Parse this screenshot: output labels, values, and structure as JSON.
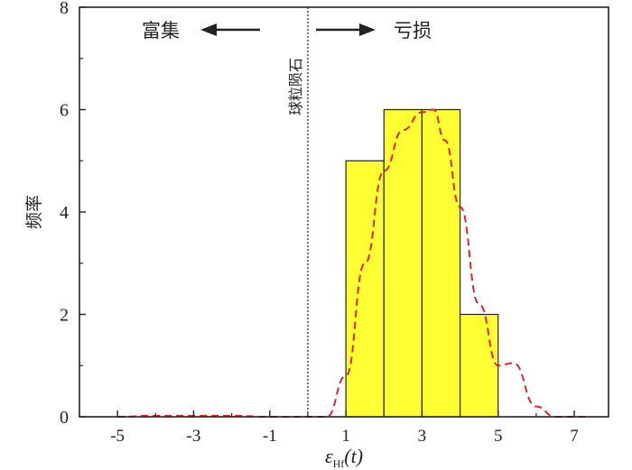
{
  "chart_data": {
    "type": "bar",
    "ylabel": "频率",
    "xlabel": {
      "base": "ε",
      "sub": "Hf",
      "suffix": "(t)"
    },
    "xlim": [
      -6.0,
      7.9
    ],
    "ylim": [
      0,
      8
    ],
    "x_ticks": [
      -5,
      -3,
      -1,
      1,
      3,
      5,
      7
    ],
    "x_tick_labels": [
      "-5",
      "-3",
      "-1",
      "1",
      "3",
      "5",
      "7"
    ],
    "y_ticks": [
      0,
      2,
      4,
      6,
      8
    ],
    "y_tick_labels": [
      "0",
      "2",
      "4",
      "6",
      "8"
    ],
    "bins": [
      {
        "x0": 1.0,
        "x1": 2.0,
        "value": 5
      },
      {
        "x0": 2.0,
        "x1": 3.0,
        "value": 6
      },
      {
        "x0": 3.0,
        "x1": 4.0,
        "value": 6
      },
      {
        "x0": 4.0,
        "x1": 5.0,
        "value": 2
      }
    ],
    "bar_color": "#ffff33",
    "density_curve": {
      "color": "#e0262a",
      "points": [
        [
          -5.0,
          0.0
        ],
        [
          -4.0,
          0.02
        ],
        [
          -3.0,
          0.02
        ],
        [
          -2.0,
          0.02
        ],
        [
          -1.0,
          0.0
        ],
        [
          0.5,
          0.0
        ],
        [
          1.0,
          0.8
        ],
        [
          1.5,
          3.0
        ],
        [
          2.0,
          4.8
        ],
        [
          2.5,
          5.6
        ],
        [
          3.0,
          5.95
        ],
        [
          3.3,
          6.0
        ],
        [
          3.6,
          5.4
        ],
        [
          4.0,
          4.1
        ],
        [
          4.5,
          2.2
        ],
        [
          5.0,
          1.0
        ],
        [
          5.4,
          1.05
        ],
        [
          6.0,
          0.2
        ],
        [
          6.5,
          0.0
        ],
        [
          7.4,
          0.0
        ]
      ]
    },
    "reference_line": {
      "x": 0,
      "label": "球粒陨石",
      "color": "#2b3a9b"
    },
    "annotations": {
      "left_text": "富集",
      "right_text": "亏损"
    }
  }
}
